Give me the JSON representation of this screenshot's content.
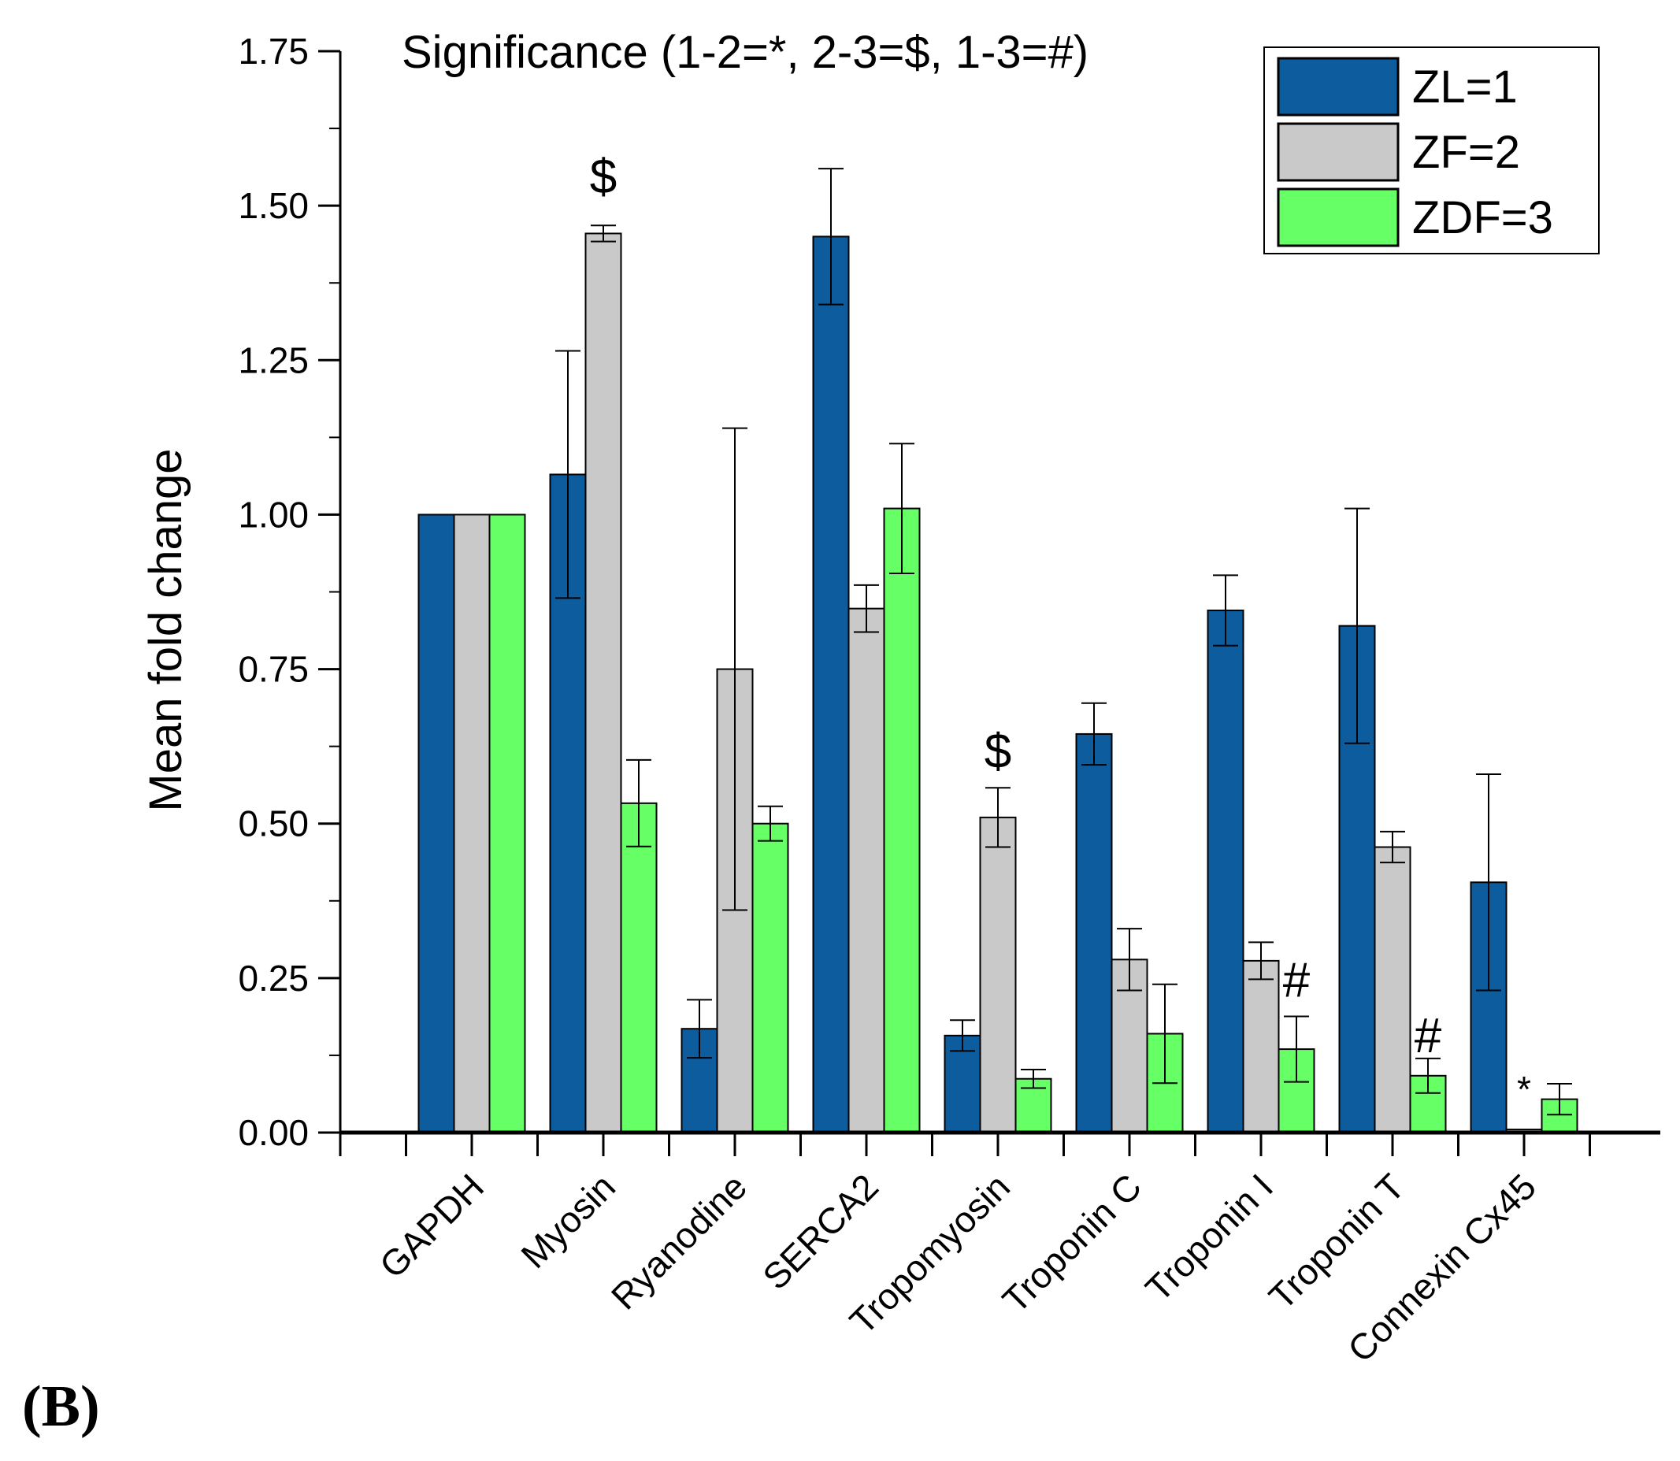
{
  "panel_label": "(B)",
  "chart_data": {
    "type": "bar",
    "title": "Significance (1-2=*, 2-3=$, 1-3=#)",
    "xlabel": "",
    "ylabel": "Mean fold change",
    "ylim": [
      0,
      1.75
    ],
    "yticks": [
      0.0,
      0.25,
      0.5,
      0.75,
      1.0,
      1.25,
      1.5,
      1.75
    ],
    "ytick_labels": [
      "0.00",
      "0.25",
      "0.50",
      "0.75",
      "1.00",
      "1.25",
      "1.50",
      "1.75"
    ],
    "grid": false,
    "legend_position": "top-right",
    "categories": [
      "GAPDH",
      "Myosin",
      "Ryanodine",
      "SERCA2",
      "Tropomyosin",
      "Troponin C",
      "Troponin I",
      "Troponin T",
      "Connexin Cx45"
    ],
    "series": [
      {
        "name": "ZL=1",
        "color": "#0d5c9e",
        "values": [
          1.0,
          1.065,
          0.168,
          1.45,
          0.157,
          0.645,
          0.845,
          0.82,
          0.405
        ],
        "errors": [
          0,
          0.2,
          0.047,
          0.11,
          0.025,
          0.05,
          0.057,
          0.19,
          0.175
        ]
      },
      {
        "name": "ZF=2",
        "color": "#c9c9c9",
        "values": [
          1.0,
          1.455,
          0.75,
          0.848,
          0.51,
          0.28,
          0.278,
          0.462,
          0.005
        ],
        "errors": [
          0,
          0.013,
          0.39,
          0.038,
          0.048,
          0.05,
          0.03,
          0.025,
          0
        ]
      },
      {
        "name": "ZDF=3",
        "color": "#66ff66",
        "values": [
          1.0,
          0.533,
          0.5,
          1.01,
          0.087,
          0.16,
          0.135,
          0.092,
          0.054
        ],
        "errors": [
          0,
          0.07,
          0.028,
          0.105,
          0.015,
          0.08,
          0.053,
          0.028,
          0.025
        ]
      }
    ],
    "annotations": [
      {
        "text": "$",
        "category_index": 1,
        "series_index": 1,
        "value": 1.52
      },
      {
        "text": "$",
        "category_index": 4,
        "series_index": 1,
        "value": 0.59
      },
      {
        "text": "#",
        "category_index": 6,
        "series_index": 2,
        "value": 0.22
      },
      {
        "text": "#",
        "category_index": 7,
        "series_index": 2,
        "value": 0.13
      },
      {
        "text": "*",
        "category_index": 8,
        "series_index": 1,
        "value": 0.05
      }
    ]
  }
}
